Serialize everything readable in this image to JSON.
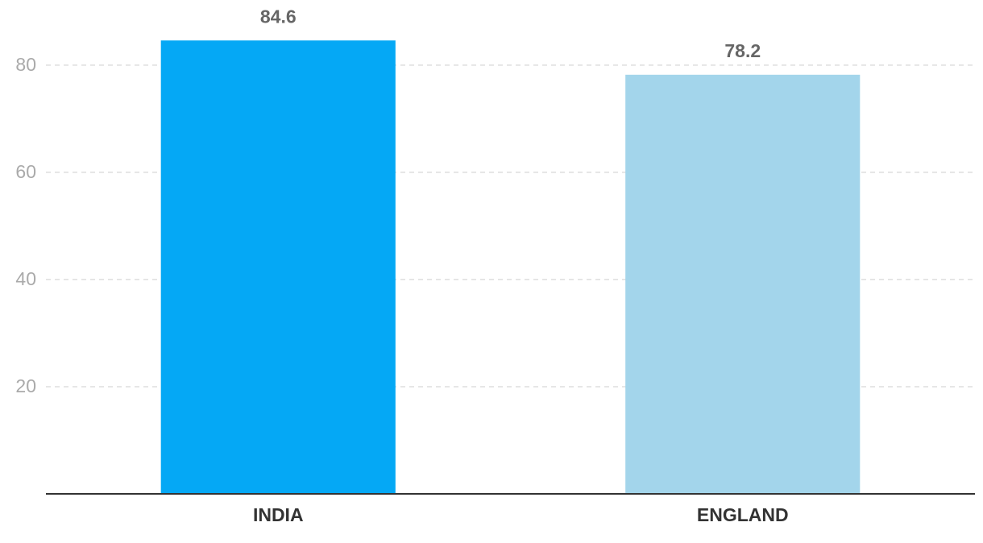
{
  "chart_data": {
    "type": "bar",
    "categories": [
      "INDIA",
      "ENGLAND"
    ],
    "values": [
      84.6,
      78.2
    ],
    "colors": [
      "#05a8f5",
      "#a3d5eb"
    ],
    "ylim": [
      0,
      92
    ],
    "yticks": [
      20,
      40,
      60,
      80
    ],
    "grid": true
  }
}
